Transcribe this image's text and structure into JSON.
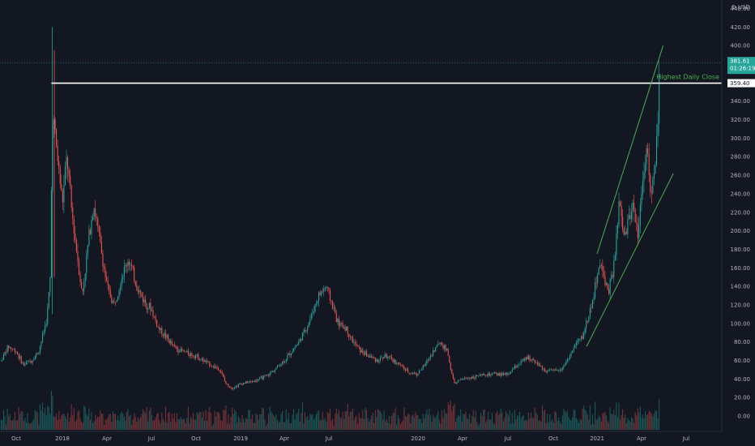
{
  "currency": "USD",
  "colors": {
    "background": "#131722",
    "up": "#26a69a",
    "down": "#ef5350",
    "trendline": "#4caf50",
    "resistance": "#ffffff",
    "axis_text": "#b2b5be",
    "price_badge": "#26a69a"
  },
  "chart_data": {
    "type": "candlestick",
    "ylim": [
      -15,
      452
    ],
    "y_ticks": [
      "0.00",
      "20.00",
      "40.00",
      "60.00",
      "80.00",
      "100.00",
      "120.00",
      "140.00",
      "160.00",
      "180.00",
      "200.00",
      "220.00",
      "240.00",
      "260.00",
      "280.00",
      "300.00",
      "320.00",
      "340.00",
      "360.00",
      "380.00",
      "400.00",
      "420.00",
      "440.00"
    ],
    "x_ticks": [
      "Oct",
      "2018",
      "Apr",
      "Jul",
      "Oct",
      "2019",
      "Apr",
      "Jul",
      "2020",
      "Apr",
      "Jul",
      "Oct",
      "2021",
      "Apr",
      "Jul"
    ],
    "x_tick_values": [
      "2017-10",
      "2018-01",
      "2018-04",
      "2018-07",
      "2018-10",
      "2019-01",
      "2019-04",
      "2019-07",
      "2020-01",
      "2020-04",
      "2020-07",
      "2020-10",
      "2021-01",
      "2021-04",
      "2021-07"
    ],
    "price_path": [
      [
        "2017-09-01",
        60
      ],
      [
        "2017-09-15",
        75
      ],
      [
        "2017-10-01",
        70
      ],
      [
        "2017-10-15",
        55
      ],
      [
        "2017-11-01",
        60
      ],
      [
        "2017-11-15",
        70
      ],
      [
        "2017-12-01",
        105
      ],
      [
        "2017-12-08",
        150
      ],
      [
        "2017-12-12",
        330
      ],
      [
        "2017-12-20",
        290
      ],
      [
        "2018-01-01",
        230
      ],
      [
        "2018-01-10",
        280
      ],
      [
        "2018-01-20",
        220
      ],
      [
        "2018-02-01",
        170
      ],
      [
        "2018-02-10",
        130
      ],
      [
        "2018-02-25",
        200
      ],
      [
        "2018-03-05",
        230
      ],
      [
        "2018-03-20",
        180
      ],
      [
        "2018-04-01",
        140
      ],
      [
        "2018-04-15",
        120
      ],
      [
        "2018-05-01",
        150
      ],
      [
        "2018-05-15",
        170
      ],
      [
        "2018-06-01",
        140
      ],
      [
        "2018-06-15",
        125
      ],
      [
        "2018-07-01",
        115
      ],
      [
        "2018-07-15",
        95
      ],
      [
        "2018-08-01",
        85
      ],
      [
        "2018-08-15",
        75
      ],
      [
        "2018-09-01",
        70
      ],
      [
        "2018-10-01",
        65
      ],
      [
        "2018-10-15",
        60
      ],
      [
        "2018-11-01",
        55
      ],
      [
        "2018-11-20",
        50
      ],
      [
        "2018-12-01",
        35
      ],
      [
        "2018-12-15",
        30
      ],
      [
        "2019-01-01",
        35
      ],
      [
        "2019-02-01",
        38
      ],
      [
        "2019-03-01",
        45
      ],
      [
        "2019-04-01",
        60
      ],
      [
        "2019-05-01",
        80
      ],
      [
        "2019-05-20",
        100
      ],
      [
        "2019-06-10",
        130
      ],
      [
        "2019-06-25",
        140
      ],
      [
        "2019-07-05",
        125
      ],
      [
        "2019-07-20",
        100
      ],
      [
        "2019-08-05",
        95
      ],
      [
        "2019-08-20",
        80
      ],
      [
        "2019-09-05",
        70
      ],
      [
        "2019-09-20",
        65
      ],
      [
        "2019-10-10",
        60
      ],
      [
        "2019-10-25",
        65
      ],
      [
        "2019-11-10",
        60
      ],
      [
        "2019-11-25",
        55
      ],
      [
        "2019-12-10",
        48
      ],
      [
        "2019-12-30",
        45
      ],
      [
        "2020-01-15",
        55
      ],
      [
        "2020-02-01",
        70
      ],
      [
        "2020-02-15",
        80
      ],
      [
        "2020-03-01",
        70
      ],
      [
        "2020-03-10",
        45
      ],
      [
        "2020-03-15",
        35
      ],
      [
        "2020-04-01",
        40
      ],
      [
        "2020-05-01",
        43
      ],
      [
        "2020-06-01",
        45
      ],
      [
        "2020-07-01",
        45
      ],
      [
        "2020-07-20",
        55
      ],
      [
        "2020-08-10",
        63
      ],
      [
        "2020-08-25",
        60
      ],
      [
        "2020-09-10",
        50
      ],
      [
        "2020-10-01",
        48
      ],
      [
        "2020-10-20",
        52
      ],
      [
        "2020-11-05",
        65
      ],
      [
        "2020-11-20",
        80
      ],
      [
        "2020-12-01",
        85
      ],
      [
        "2020-12-15",
        110
      ],
      [
        "2020-12-25",
        130
      ],
      [
        "2021-01-05",
        165
      ],
      [
        "2021-01-15",
        150
      ],
      [
        "2021-01-25",
        135
      ],
      [
        "2021-02-05",
        165
      ],
      [
        "2021-02-15",
        230
      ],
      [
        "2021-02-25",
        190
      ],
      [
        "2021-03-05",
        210
      ],
      [
        "2021-03-15",
        230
      ],
      [
        "2021-03-25",
        195
      ],
      [
        "2021-04-05",
        270
      ],
      [
        "2021-04-12",
        290
      ],
      [
        "2021-04-20",
        230
      ],
      [
        "2021-04-28",
        270
      ],
      [
        "2021-05-03",
        300
      ],
      [
        "2021-05-07",
        381.61
      ]
    ],
    "resistance": {
      "value": 359.4,
      "label": "Highest Daily Close"
    },
    "last_price": {
      "value": "381.61",
      "countdown": "01:26:19"
    },
    "price_labels": {
      "resistance": "359.40"
    },
    "channel": [
      {
        "role": "upper",
        "from": [
          "2021-01-01",
          175
        ],
        "to": [
          "2021-05-15",
          400
        ]
      },
      {
        "role": "lower",
        "from": [
          "2020-12-10",
          75
        ],
        "to": [
          "2021-06-05",
          262
        ]
      }
    ]
  }
}
